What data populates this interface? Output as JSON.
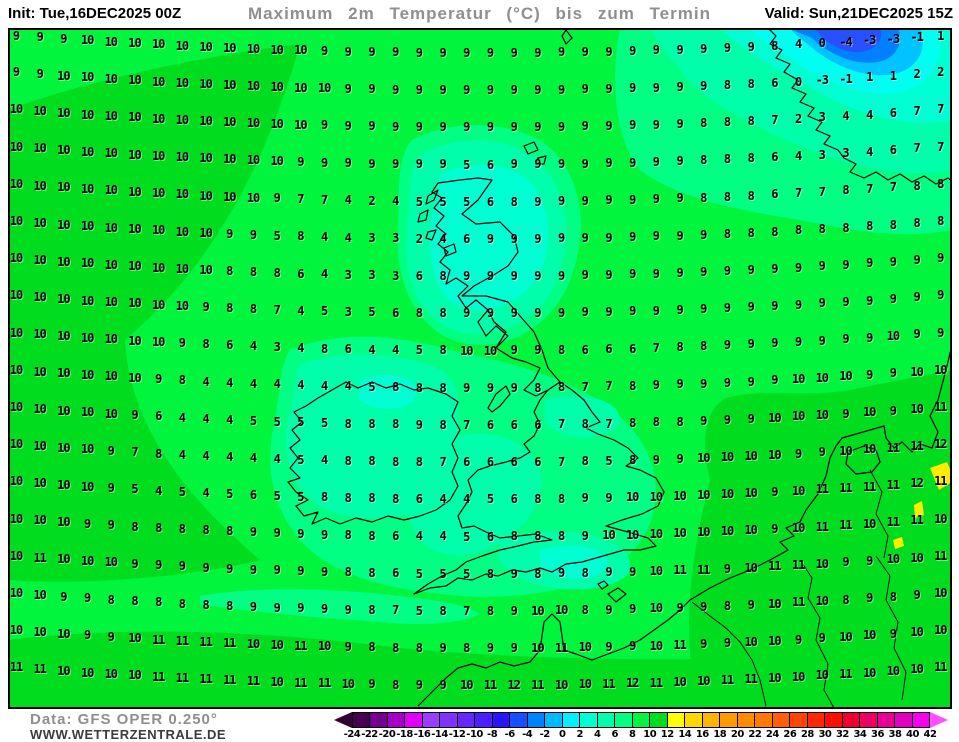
{
  "header": {
    "init_label": "Init: Tue,16DEC2025 00Z",
    "title": "Maximum 2m Temperatur (°C) bis zum Termin",
    "valid_label": "Valid: Sun,21DEC2025 15Z"
  },
  "footer": {
    "data_source": "Data: GFS OPER 0.250°",
    "website": "WWW.WETTERZENTRALE.DE"
  },
  "colorbar": {
    "unit": "°C",
    "tick_labels": [
      "-24",
      "-22",
      "-20",
      "-18",
      "-16",
      "-14",
      "-12",
      "-10",
      "-8",
      "-6",
      "-4",
      "-2",
      "0",
      "2",
      "4",
      "6",
      "8",
      "10",
      "12",
      "14",
      "16",
      "18",
      "20",
      "22",
      "24",
      "26",
      "28",
      "30",
      "32",
      "34",
      "36",
      "38",
      "40",
      "42"
    ],
    "segment_colors": [
      "#460050",
      "#73008f",
      "#a500c8",
      "#e100ff",
      "#9b3cff",
      "#8232ff",
      "#6428ff",
      "#4b1eff",
      "#2814ff",
      "#1450ff",
      "#0082ff",
      "#00b9ff",
      "#00f0ff",
      "#00ffd2",
      "#00ffaa",
      "#00ff82",
      "#00f53c",
      "#00dc1e",
      "#ffff00",
      "#ffd700",
      "#ffb400",
      "#ff9b00",
      "#ff8c00",
      "#ff7800",
      "#ff5f00",
      "#ff4600",
      "#ff2800",
      "#ff0f00",
      "#f00032",
      "#eb0064",
      "#e60096",
      "#e100be",
      "#f500f0"
    ],
    "left_arrow_color": "#320032",
    "right_arrow_color": "#ff50ff"
  },
  "map": {
    "region_colors": {
      "t_8_10": "#00f53c",
      "t_10_12": "#00dc1e",
      "t_12_14": "#ffeb00",
      "t_6_8": "#00ff82",
      "t_4_6": "#00ffaa",
      "t_2_4": "#00ffd2",
      "t_0_2": "#00fff0",
      "t_m2_0": "#00c3ff",
      "t_m4_m2": "#0080ff",
      "t_m6_m4": "#2850ff"
    },
    "temperature_grid": {
      "cols": 40,
      "rows": 18,
      "values": [
        [
          9,
          9,
          9,
          10,
          10,
          10,
          10,
          10,
          10,
          10,
          10,
          10,
          10,
          9,
          9,
          9,
          9,
          9,
          9,
          9,
          9,
          9,
          9,
          9,
          9,
          9,
          9,
          9,
          9,
          9,
          9,
          9,
          8,
          4,
          0,
          -4,
          -3,
          -3,
          -1,
          1
        ],
        [
          9,
          9,
          10,
          10,
          10,
          10,
          10,
          10,
          10,
          10,
          10,
          10,
          10,
          10,
          9,
          9,
          9,
          9,
          9,
          9,
          9,
          9,
          9,
          9,
          9,
          9,
          9,
          9,
          9,
          9,
          8,
          8,
          6,
          0,
          -3,
          -1,
          1,
          1,
          2,
          2
        ],
        [
          10,
          10,
          10,
          10,
          10,
          10,
          10,
          10,
          10,
          10,
          10,
          10,
          10,
          9,
          9,
          9,
          9,
          9,
          9,
          9,
          9,
          9,
          9,
          9,
          9,
          9,
          9,
          9,
          9,
          8,
          8,
          8,
          7,
          2,
          3,
          4,
          4,
          6,
          7,
          7
        ],
        [
          10,
          10,
          10,
          10,
          10,
          10,
          10,
          10,
          10,
          10,
          10,
          10,
          9,
          9,
          9,
          9,
          9,
          9,
          9,
          5,
          6,
          9,
          9,
          9,
          9,
          9,
          9,
          9,
          9,
          8,
          8,
          8,
          6,
          4,
          3,
          3,
          4,
          6,
          7,
          7
        ],
        [
          10,
          10,
          10,
          10,
          10,
          10,
          10,
          10,
          10,
          10,
          10,
          9,
          7,
          7,
          4,
          2,
          4,
          5,
          5,
          5,
          6,
          8,
          9,
          9,
          9,
          9,
          9,
          9,
          9,
          8,
          8,
          8,
          6,
          7,
          7,
          8,
          7,
          7,
          8,
          8
        ],
        [
          10,
          10,
          10,
          10,
          10,
          10,
          10,
          10,
          10,
          9,
          9,
          5,
          8,
          4,
          4,
          3,
          3,
          2,
          4,
          6,
          9,
          9,
          9,
          9,
          9,
          9,
          9,
          9,
          9,
          9,
          8,
          8,
          8,
          8,
          8,
          8,
          8,
          8,
          8,
          8
        ],
        [
          10,
          10,
          10,
          10,
          10,
          10,
          10,
          10,
          10,
          8,
          8,
          8,
          6,
          4,
          3,
          3,
          3,
          6,
          8,
          9,
          9,
          9,
          9,
          9,
          9,
          9,
          9,
          9,
          9,
          9,
          9,
          9,
          9,
          9,
          9,
          9,
          9,
          9,
          9,
          9
        ],
        [
          10,
          10,
          10,
          10,
          10,
          10,
          10,
          10,
          9,
          8,
          8,
          7,
          4,
          5,
          3,
          5,
          6,
          8,
          8,
          9,
          9,
          9,
          9,
          9,
          9,
          9,
          9,
          9,
          9,
          9,
          9,
          9,
          9,
          9,
          9,
          9,
          9,
          9,
          9,
          9
        ],
        [
          10,
          10,
          10,
          10,
          10,
          10,
          10,
          9,
          8,
          6,
          4,
          3,
          4,
          8,
          6,
          4,
          4,
          5,
          8,
          10,
          10,
          9,
          9,
          8,
          6,
          6,
          6,
          7,
          8,
          8,
          9,
          9,
          9,
          9,
          9,
          9,
          9,
          10,
          9,
          9
        ],
        [
          10,
          10,
          10,
          10,
          10,
          10,
          9,
          8,
          4,
          4,
          4,
          4,
          4,
          4,
          4,
          5,
          8,
          8,
          8,
          9,
          9,
          9,
          8,
          8,
          7,
          7,
          8,
          9,
          9,
          9,
          9,
          9,
          9,
          10,
          10,
          10,
          9,
          9,
          10,
          10
        ],
        [
          10,
          10,
          10,
          10,
          10,
          9,
          6,
          4,
          4,
          4,
          5,
          5,
          5,
          5,
          8,
          8,
          8,
          9,
          8,
          7,
          6,
          6,
          6,
          7,
          8,
          7,
          8,
          8,
          8,
          9,
          9,
          9,
          10,
          10,
          10,
          9,
          10,
          9,
          10,
          11
        ],
        [
          10,
          10,
          10,
          10,
          9,
          7,
          8,
          4,
          4,
          4,
          4,
          4,
          5,
          4,
          8,
          8,
          8,
          8,
          7,
          6,
          6,
          6,
          6,
          7,
          8,
          5,
          8,
          9,
          9,
          10,
          10,
          10,
          10,
          9,
          9,
          10,
          10,
          11,
          11,
          12
        ],
        [
          10,
          10,
          10,
          10,
          9,
          5,
          4,
          5,
          4,
          5,
          6,
          5,
          5,
          8,
          8,
          8,
          8,
          6,
          4,
          4,
          5,
          6,
          8,
          8,
          9,
          9,
          10,
          10,
          10,
          10,
          10,
          10,
          9,
          10,
          11,
          11,
          11,
          11,
          12,
          11
        ],
        [
          10,
          10,
          10,
          9,
          9,
          8,
          8,
          8,
          8,
          8,
          9,
          9,
          9,
          9,
          8,
          8,
          6,
          4,
          4,
          5,
          6,
          8,
          8,
          8,
          9,
          10,
          10,
          10,
          10,
          10,
          10,
          10,
          9,
          10,
          11,
          11,
          10,
          11,
          11,
          10
        ],
        [
          10,
          11,
          10,
          10,
          10,
          9,
          9,
          9,
          9,
          9,
          9,
          9,
          9,
          9,
          8,
          8,
          6,
          5,
          5,
          5,
          8,
          9,
          8,
          9,
          8,
          9,
          9,
          10,
          11,
          11,
          9,
          10,
          11,
          11,
          10,
          9,
          9,
          10,
          10,
          11
        ],
        [
          10,
          10,
          9,
          9,
          8,
          8,
          8,
          8,
          8,
          8,
          9,
          9,
          9,
          9,
          9,
          8,
          7,
          5,
          8,
          7,
          8,
          9,
          10,
          10,
          8,
          9,
          9,
          10,
          9,
          9,
          8,
          9,
          10,
          11,
          10,
          8,
          9,
          8,
          9,
          10
        ],
        [
          10,
          10,
          10,
          9,
          9,
          10,
          11,
          11,
          11,
          11,
          10,
          10,
          11,
          10,
          9,
          8,
          8,
          8,
          9,
          8,
          9,
          9,
          10,
          11,
          10,
          9,
          9,
          10,
          11,
          9,
          9,
          10,
          10,
          9,
          9,
          10,
          10,
          9,
          10,
          10
        ],
        [
          11,
          11,
          10,
          10,
          10,
          10,
          11,
          11,
          11,
          11,
          11,
          10,
          11,
          11,
          10,
          9,
          8,
          9,
          9,
          10,
          11,
          12,
          11,
          10,
          10,
          11,
          12,
          11,
          10,
          10,
          11,
          11,
          10,
          10,
          10,
          11,
          10,
          10,
          10,
          11
        ]
      ]
    }
  }
}
